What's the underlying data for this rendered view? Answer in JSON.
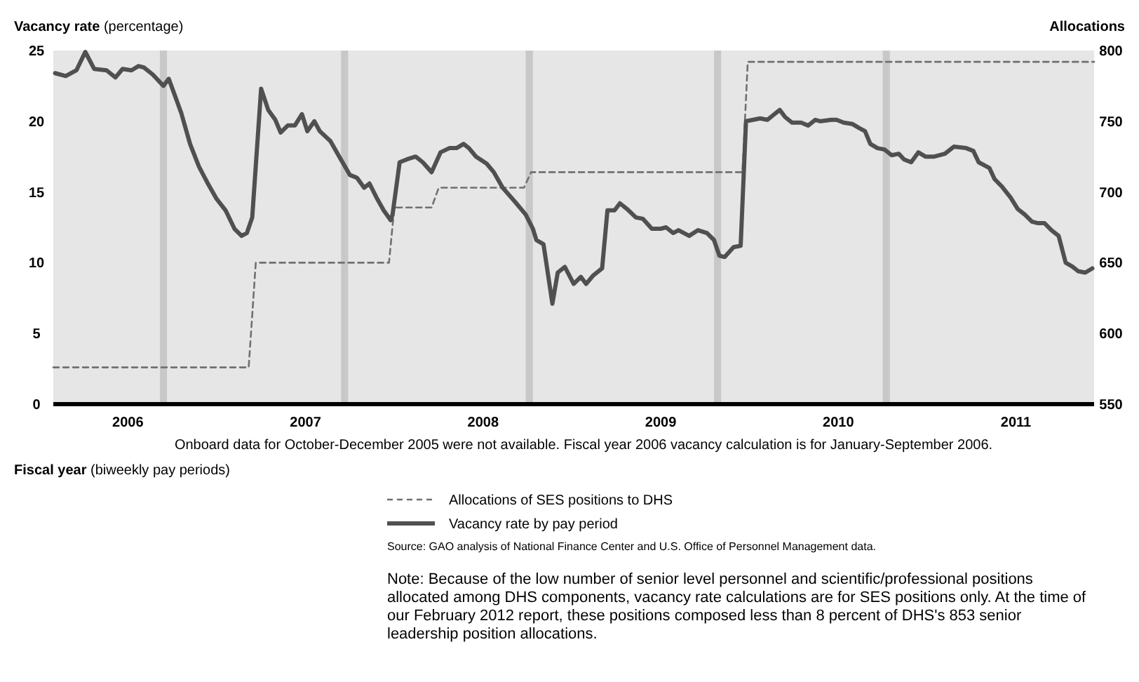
{
  "chart_data": {
    "type": "line",
    "ylabel": "Vacancy rate (percentage)",
    "y2label": "Allocations",
    "xlabel": "Fiscal year (biweekly pay periods)",
    "xlim": [
      2006.08,
      2011.94
    ],
    "xticks": [
      {
        "value": 2006.5,
        "label": "2006"
      },
      {
        "value": 2007.5,
        "label": "2007"
      },
      {
        "value": 2008.5,
        "label": "2008"
      },
      {
        "value": 2009.5,
        "label": "2009"
      },
      {
        "value": 2010.5,
        "label": "2010"
      },
      {
        "value": 2011.5,
        "label": "2011"
      }
    ],
    "ylim": [
      0,
      25
    ],
    "yticks": [
      0,
      5,
      10,
      15,
      20,
      25
    ],
    "y2lim": [
      550,
      800
    ],
    "y2ticks": [
      550,
      600,
      650,
      700,
      750,
      800
    ],
    "grid": false,
    "legend": "bottom",
    "marker": "none",
    "bands": [
      {
        "axis": "x",
        "from": 2006.68,
        "to": 2006.72,
        "color": "#c8c8c8"
      },
      {
        "axis": "x",
        "from": 2007.7,
        "to": 2007.74,
        "color": "#c8c8c8"
      },
      {
        "axis": "x",
        "from": 2008.74,
        "to": 2008.78,
        "color": "#c8c8c8"
      },
      {
        "axis": "x",
        "from": 2009.8,
        "to": 2009.84,
        "color": "#c8c8c8"
      },
      {
        "axis": "x",
        "from": 2010.75,
        "to": 2010.79,
        "color": "#c8c8c8"
      }
    ],
    "series": [
      {
        "name": "Allocations of SES positions to DHS",
        "color": "#707070",
        "axis": "y2",
        "line_style": "dashed",
        "x": [
          2006.08,
          2007.18,
          2007.22,
          2007.97,
          2008.0,
          2008.21,
          2008.25,
          2008.73,
          2008.77,
          2009.96,
          2009.99,
          2011.94
        ],
        "values": [
          576,
          576,
          650,
          650,
          689,
          689,
          703,
          703,
          714,
          714,
          792,
          792
        ]
      },
      {
        "name": "Vacancy rate by pay period",
        "color": "#505050",
        "line_style": "solid",
        "x": [
          2006.09,
          2006.15,
          2006.21,
          2006.26,
          2006.31,
          2006.38,
          2006.43,
          2006.47,
          2006.52,
          2006.56,
          2006.59,
          2006.64,
          2006.7,
          2006.73,
          2006.8,
          2006.85,
          2006.9,
          2006.95,
          2007.0,
          2007.05,
          2007.1,
          2007.14,
          2007.17,
          2007.2,
          2007.25,
          2007.29,
          2007.33,
          2007.36,
          2007.4,
          2007.44,
          2007.48,
          2007.51,
          2007.55,
          2007.58,
          2007.64,
          2007.69,
          2007.75,
          2007.79,
          2007.83,
          2007.86,
          2007.9,
          2007.94,
          2007.98,
          2007.99,
          2008.03,
          2008.07,
          2008.12,
          2008.16,
          2008.21,
          2008.26,
          2008.31,
          2008.35,
          2008.39,
          2008.42,
          2008.46,
          2008.52,
          2008.56,
          2008.61,
          2008.68,
          2008.74,
          2008.78,
          2008.8,
          2008.84,
          2008.89,
          2008.92,
          2008.96,
          2009.01,
          2009.05,
          2009.08,
          2009.12,
          2009.17,
          2009.2,
          2009.24,
          2009.27,
          2009.31,
          2009.36,
          2009.4,
          2009.45,
          2009.5,
          2009.53,
          2009.57,
          2009.6,
          2009.66,
          2009.71,
          2009.76,
          2009.8,
          2009.83,
          2009.86,
          2009.91,
          2009.95,
          2009.98,
          2010.02,
          2010.06,
          2010.1,
          2010.13,
          2010.17,
          2010.2,
          2010.24,
          2010.29,
          2010.33,
          2010.37,
          2010.4,
          2010.46,
          2010.49,
          2010.53,
          2010.58,
          2010.62,
          2010.65,
          2010.68,
          2010.72,
          2010.76,
          2010.8,
          2010.84,
          2010.87,
          2010.91,
          2010.95,
          2010.99,
          2011.04,
          2011.1,
          2011.15,
          2011.22,
          2011.26,
          2011.29,
          2011.35,
          2011.38,
          2011.42,
          2011.47,
          2011.51,
          2011.55,
          2011.59,
          2011.62,
          2011.66,
          2011.7,
          2011.74,
          2011.78,
          2011.82,
          2011.85,
          2011.89,
          2011.93
        ],
        "values": [
          23.4,
          23.2,
          23.6,
          24.9,
          23.7,
          23.6,
          23.1,
          23.7,
          23.6,
          23.9,
          23.8,
          23.3,
          22.5,
          23.0,
          20.6,
          18.4,
          16.8,
          15.6,
          14.5,
          13.7,
          12.4,
          11.9,
          12.1,
          13.2,
          22.3,
          20.8,
          20.1,
          19.2,
          19.7,
          19.7,
          20.5,
          19.3,
          20.0,
          19.3,
          18.6,
          17.5,
          16.2,
          16.0,
          15.3,
          15.6,
          14.6,
          13.7,
          13.0,
          13.4,
          17.1,
          17.3,
          17.5,
          17.1,
          16.4,
          17.8,
          18.1,
          18.1,
          18.4,
          18.1,
          17.5,
          17.0,
          16.4,
          15.3,
          14.3,
          13.4,
          12.4,
          11.6,
          11.3,
          7.1,
          9.3,
          9.7,
          8.5,
          9.0,
          8.5,
          9.1,
          9.6,
          13.7,
          13.7,
          14.2,
          13.8,
          13.2,
          13.1,
          12.4,
          12.4,
          12.5,
          12.1,
          12.3,
          11.9,
          12.3,
          12.1,
          11.6,
          10.5,
          10.4,
          11.1,
          11.2,
          20.0,
          20.1,
          20.2,
          20.1,
          20.4,
          20.8,
          20.3,
          19.9,
          19.9,
          19.7,
          20.1,
          20.0,
          20.1,
          20.1,
          19.9,
          19.8,
          19.5,
          19.3,
          18.4,
          18.1,
          18.0,
          17.6,
          17.7,
          17.3,
          17.1,
          17.8,
          17.5,
          17.5,
          17.7,
          18.2,
          18.1,
          17.9,
          17.1,
          16.7,
          15.9,
          15.4,
          14.6,
          13.8,
          13.4,
          12.9,
          12.8,
          12.8,
          12.3,
          11.9,
          10.0,
          9.7,
          9.4,
          9.3,
          9.6
        ]
      }
    ],
    "annotations": [
      "Onboard data for October-December 2005 were not available. Fiscal year 2006 vacancy calculation is for January-September 2006.",
      "Source: GAO analysis of National Finance Center and U.S. Office of Personnel Management data.",
      "Note: Because of the low number of senior level personnel and scientific/professional positions allocated among DHS components, vacancy rate calculations are for SES positions only. At the time of our February 2012 report, these positions composed less than 8 percent of DHS's 853 senior leadership position allocations."
    ]
  }
}
